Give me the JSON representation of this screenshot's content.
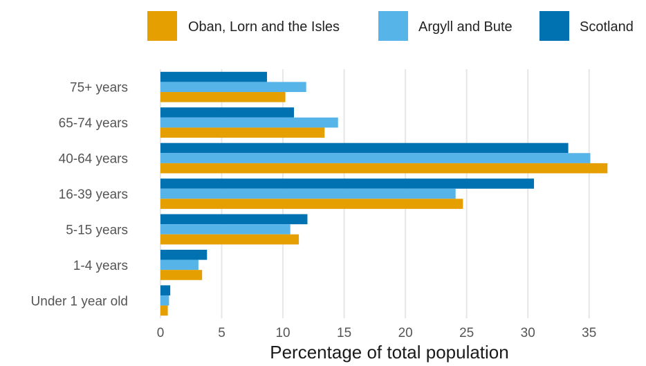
{
  "chart_data": {
    "type": "bar",
    "orientation": "horizontal",
    "categories": [
      "Under 1 year old",
      "1-4 years",
      "5-15 years",
      "16-39 years",
      "40-64 years",
      "65-74 years",
      "75+ years"
    ],
    "series": [
      {
        "name": "Oban, Lorn and the Isles",
        "color": "#E69F00",
        "values": [
          0.6,
          3.4,
          11.3,
          24.7,
          36.5,
          13.4,
          10.2
        ]
      },
      {
        "name": "Argyll and Bute",
        "color": "#56B4E9",
        "values": [
          0.7,
          3.1,
          10.6,
          24.1,
          35.1,
          14.5,
          11.9
        ]
      },
      {
        "name": "Scotland",
        "color": "#0072B2",
        "values": [
          0.8,
          3.8,
          12.0,
          30.5,
          33.3,
          10.9,
          8.7
        ]
      }
    ],
    "xlabel": "Percentage of total population",
    "ylabel": "",
    "title": "",
    "xlim": [
      0,
      37.5
    ],
    "xticks": [
      0,
      5,
      10,
      15,
      20,
      25,
      30,
      35
    ],
    "grid": true,
    "legend_position": "top"
  }
}
